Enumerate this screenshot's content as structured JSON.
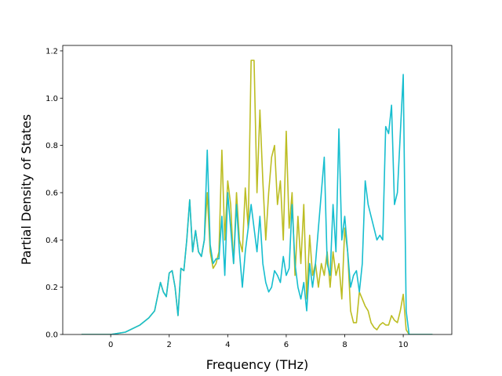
{
  "chart_data": {
    "type": "line",
    "xlabel": "Frequency (THz)",
    "ylabel": "Partial Density of States",
    "x": [
      -1,
      0,
      0.5,
      1.0,
      1.3,
      1.5,
      1.7,
      1.8,
      1.9,
      2.0,
      2.1,
      2.2,
      2.3,
      2.4,
      2.5,
      2.6,
      2.7,
      2.8,
      2.9,
      3.0,
      3.1,
      3.2,
      3.3,
      3.4,
      3.5,
      3.6,
      3.7,
      3.8,
      3.9,
      4.0,
      4.1,
      4.2,
      4.3,
      4.4,
      4.5,
      4.6,
      4.7,
      4.8,
      4.9,
      5.0,
      5.1,
      5.2,
      5.3,
      5.4,
      5.5,
      5.6,
      5.7,
      5.8,
      5.9,
      6.0,
      6.1,
      6.2,
      6.3,
      6.4,
      6.5,
      6.6,
      6.7,
      6.8,
      6.9,
      7.0,
      7.1,
      7.2,
      7.3,
      7.4,
      7.5,
      7.6,
      7.7,
      7.8,
      7.9,
      8.0,
      8.1,
      8.2,
      8.3,
      8.4,
      8.5,
      8.6,
      8.7,
      8.8,
      8.9,
      9.0,
      9.1,
      9.2,
      9.3,
      9.4,
      9.5,
      9.6,
      9.7,
      9.8,
      9.9,
      10.0,
      10.1,
      10.2,
      11
    ],
    "series": [
      {
        "color": "#bcbd22",
        "values": [
          0,
          0,
          0.01,
          0.04,
          0.07,
          0.1,
          0.22,
          0.18,
          0.16,
          0.26,
          0.27,
          0.2,
          0.08,
          0.28,
          0.27,
          0.4,
          0.57,
          0.35,
          0.44,
          0.35,
          0.33,
          0.4,
          0.6,
          0.35,
          0.28,
          0.3,
          0.35,
          0.78,
          0.4,
          0.65,
          0.55,
          0.3,
          0.6,
          0.4,
          0.35,
          0.62,
          0.45,
          1.16,
          1.16,
          0.6,
          0.95,
          0.65,
          0.4,
          0.6,
          0.75,
          0.8,
          0.55,
          0.65,
          0.4,
          0.86,
          0.45,
          0.6,
          0.25,
          0.5,
          0.3,
          0.55,
          0.15,
          0.42,
          0.25,
          0.3,
          0.2,
          0.3,
          0.25,
          0.35,
          0.2,
          0.35,
          0.25,
          0.3,
          0.15,
          0.45,
          0.35,
          0.1,
          0.05,
          0.05,
          0.18,
          0.15,
          0.12,
          0.1,
          0.05,
          0.03,
          0.02,
          0.04,
          0.05,
          0.04,
          0.04,
          0.08,
          0.06,
          0.05,
          0.1,
          0.17,
          0.02,
          0,
          0
        ]
      },
      {
        "color": "#17becf",
        "values": [
          0,
          0,
          0.01,
          0.04,
          0.07,
          0.1,
          0.22,
          0.18,
          0.16,
          0.26,
          0.27,
          0.2,
          0.08,
          0.28,
          0.27,
          0.4,
          0.57,
          0.35,
          0.44,
          0.35,
          0.33,
          0.4,
          0.78,
          0.38,
          0.3,
          0.32,
          0.32,
          0.5,
          0.25,
          0.6,
          0.45,
          0.3,
          0.55,
          0.35,
          0.2,
          0.35,
          0.45,
          0.55,
          0.45,
          0.35,
          0.5,
          0.3,
          0.22,
          0.18,
          0.2,
          0.27,
          0.25,
          0.22,
          0.33,
          0.25,
          0.28,
          0.55,
          0.3,
          0.2,
          0.15,
          0.22,
          0.1,
          0.3,
          0.2,
          0.3,
          0.45,
          0.6,
          0.75,
          0.3,
          0.25,
          0.55,
          0.35,
          0.87,
          0.4,
          0.5,
          0.35,
          0.2,
          0.25,
          0.27,
          0.18,
          0.3,
          0.65,
          0.55,
          0.5,
          0.45,
          0.4,
          0.42,
          0.4,
          0.88,
          0.85,
          0.97,
          0.55,
          0.6,
          0.85,
          1.1,
          0.1,
          0,
          0
        ]
      }
    ],
    "xlim": [
      -1.64,
      11.66
    ],
    "ylim": [
      0,
      1.223
    ],
    "xticks": [
      0,
      2,
      4,
      6,
      8,
      10
    ],
    "yticks": [
      {
        "value": 0,
        "label": "0.0"
      },
      {
        "value": 0.2,
        "label": "0.2"
      },
      {
        "value": 0.4,
        "label": "0.4"
      },
      {
        "value": 0.6,
        "label": "0.6"
      },
      {
        "value": 0.8,
        "label": "0.8"
      },
      {
        "value": 1.0,
        "label": "1.0"
      },
      {
        "value": 1.2,
        "label": "1.2"
      }
    ],
    "grid": false
  }
}
